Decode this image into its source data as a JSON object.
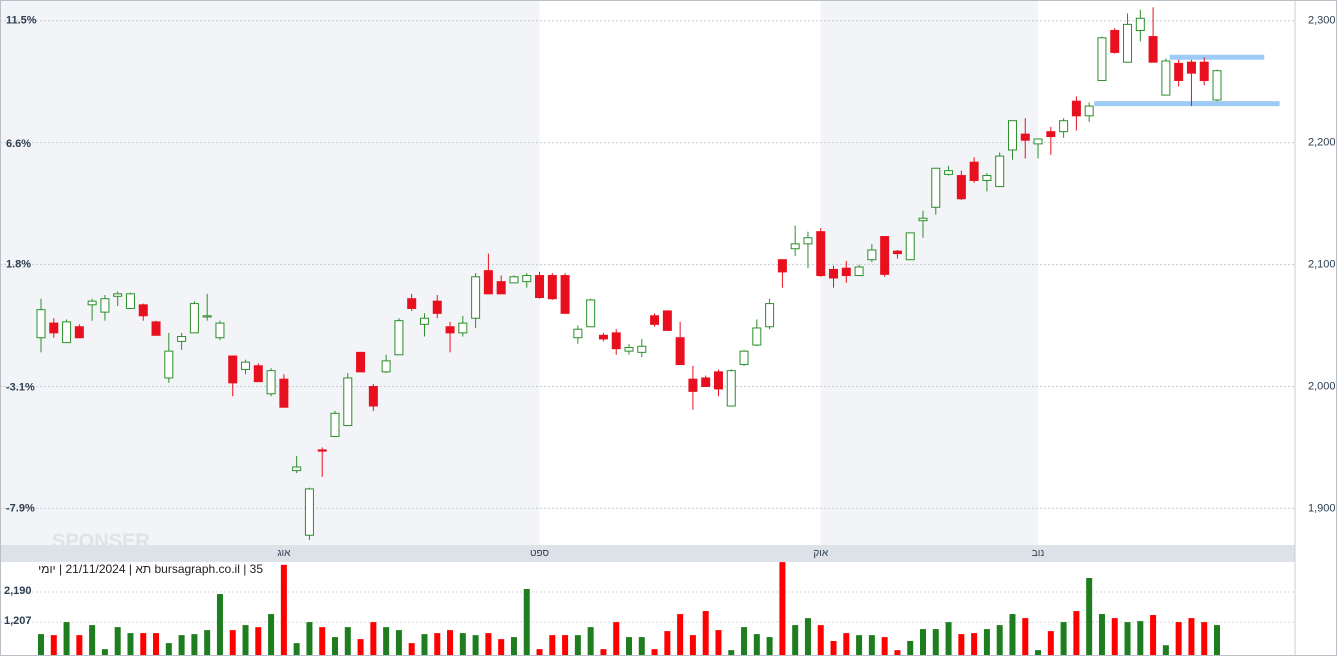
{
  "chart_data": {
    "type": "candlestick",
    "up_color": "#2a8f2a",
    "down_color": "#e8101e",
    "open": [
      2040,
      2052,
      2036,
      2049,
      2067,
      2061,
      2074,
      2064,
      2067,
      2053,
      2007,
      2037,
      2044,
      2057,
      2040,
      2025,
      2014,
      2017,
      1994,
      2006,
      1931,
      1878,
      1948,
      1959,
      1968,
      2028,
      2000,
      2012,
      2026,
      2072,
      2051,
      2070,
      2049,
      2044,
      2056,
      2095,
      2086,
      2085,
      2086,
      2091,
      2091,
      2091,
      2040,
      2049,
      2042,
      2044,
      2029,
      2028,
      2058,
      2062,
      2040,
      2006,
      2007,
      2012,
      1984,
      2018,
      2034,
      2049,
      2104,
      2113,
      2117,
      2127,
      2096,
      2097,
      2091,
      2104,
      2123,
      2111,
      2104,
      2136,
      2147,
      2174,
      2173,
      2184,
      2169,
      2164,
      2194,
      2207,
      2199,
      2209,
      2209,
      2234,
      2222,
      2251,
      2292,
      2266,
      2292,
      2287,
      2239,
      2265,
      2266,
      2266,
      2235
    ],
    "high": [
      2072,
      2056,
      2055,
      2051,
      2072,
      2075,
      2078,
      2077,
      2068,
      2054,
      2044,
      2044,
      2070,
      2076,
      2054,
      2025,
      2022,
      2019,
      2015,
      2010,
      1943,
      1917,
      1950,
      1980,
      2011,
      2028,
      2002,
      2026,
      2056,
      2076,
      2060,
      2075,
      2053,
      2058,
      2093,
      2109,
      2091,
      2091,
      2093,
      2094,
      2093,
      2093,
      2050,
      2072,
      2044,
      2047,
      2035,
      2039,
      2060,
      2062,
      2053,
      2017,
      2009,
      2014,
      2014,
      2030,
      2055,
      2072,
      2104,
      2132,
      2127,
      2130,
      2099,
      2103,
      2100,
      2117,
      2123,
      2112,
      2126,
      2144,
      2179,
      2181,
      2177,
      2188,
      2175,
      2192,
      2218,
      2220,
      2203,
      2213,
      2220,
      2238,
      2233,
      2287,
      2294,
      2306,
      2309,
      2311,
      2269,
      2268,
      2268,
      2270,
      2260
    ],
    "low": [
      2028,
      2040,
      2036,
      2040,
      2054,
      2054,
      2066,
      2064,
      2054,
      2042,
      2003,
      2030,
      2044,
      2054,
      2038,
      1992,
      2010,
      2004,
      1992,
      1983,
      1929,
      1874,
      1926,
      1959,
      1968,
      2012,
      1980,
      2011,
      2026,
      2062,
      2041,
      2056,
      2028,
      2041,
      2048,
      2076,
      2076,
      2085,
      2081,
      2072,
      2071,
      2060,
      2035,
      2049,
      2037,
      2026,
      2026,
      2024,
      2049,
      2046,
      2018,
      1981,
      2000,
      1992,
      1984,
      2017,
      2033,
      2047,
      2081,
      2107,
      2097,
      2090,
      2081,
      2085,
      2091,
      2102,
      2090,
      2105,
      2104,
      2122,
      2141,
      2173,
      2153,
      2167,
      2160,
      2164,
      2186,
      2187,
      2187,
      2190,
      2204,
      2210,
      2217,
      2251,
      2273,
      2266,
      2283,
      2266,
      2239,
      2246,
      2230,
      2247,
      2234
    ],
    "close": [
      2063,
      2044,
      2053,
      2040,
      2070,
      2072,
      2076,
      2076,
      2058,
      2042,
      2029,
      2041,
      2068,
      2058,
      2052,
      2003,
      2020,
      2004,
      2013,
      1983,
      1934,
      1916,
      1947,
      1978,
      2007,
      2012,
      1984,
      2021,
      2054,
      2064,
      2056,
      2060,
      2044,
      2052,
      2090,
      2076,
      2076,
      2090,
      2091,
      2073,
      2072,
      2060,
      2047,
      2071,
      2039,
      2031,
      2032,
      2033,
      2051,
      2046,
      2018,
      1996,
      2000,
      1998,
      2013,
      2029,
      2048,
      2068,
      2094,
      2117,
      2122,
      2091,
      2089,
      2091,
      2098,
      2112,
      2092,
      2109,
      2126,
      2138,
      2179,
      2177,
      2154,
      2169,
      2173,
      2189,
      2218,
      2202,
      2203,
      2205,
      2218,
      2222,
      2230,
      2286,
      2274,
      2297,
      2302,
      2266,
      2267,
      2251,
      2257,
      2251,
      2259
    ],
    "ylim": [
      1870,
      2317
    ],
    "yticks": [
      {
        "value": 1900,
        "label": "1,900"
      },
      {
        "value": 2000,
        "label": "2,000"
      },
      {
        "value": 2100,
        "label": "2,100"
      },
      {
        "value": 2200,
        "label": "2,200"
      },
      {
        "value": 2300,
        "label": "2,300"
      }
    ],
    "y2lim": [
      -9.35,
      12.32
    ],
    "y2ticks": [
      {
        "value": -7.9,
        "label": "-7.9%"
      },
      {
        "value": -3.1,
        "label": "-3.1%"
      },
      {
        "value": 1.8,
        "label": "1.8%"
      },
      {
        "value": 6.6,
        "label": "6.6%"
      },
      {
        "value": 11.5,
        "label": "11.5%"
      }
    ],
    "xticks": [
      {
        "value": 19,
        "label": "אוג"
      },
      {
        "value": 39,
        "label": "ספט"
      },
      {
        "value": 61,
        "label": "אוק"
      },
      {
        "value": 78,
        "label": "נוב"
      }
    ],
    "grid": true,
    "hlines": [
      {
        "value": 2270,
        "x": [
          88.3,
          95.7
        ],
        "color": "#9ecbf5"
      },
      {
        "value": 2232,
        "x": [
          82.4,
          96.9
        ],
        "color": "#9ecbf5"
      }
    ],
    "volume": {
      "values": [
        814,
        781,
        1207,
        781,
        1109,
        322,
        1043,
        847,
        847,
        847,
        519,
        781,
        814,
        945,
        2125,
        945,
        1109,
        1043,
        1470,
        3080,
        519,
        1207,
        1043,
        716,
        1043,
        650,
        1207,
        1043,
        945,
        519,
        814,
        847,
        945,
        847,
        781,
        847,
        650,
        716,
        2290,
        322,
        781,
        781,
        781,
        1043,
        322,
        1207,
        716,
        716,
        322,
        912,
        1470,
        781,
        1568,
        945,
        290,
        1043,
        814,
        716,
        3170,
        1109,
        1338,
        1109,
        590,
        847,
        781,
        781,
        716,
        290,
        590,
        978,
        978,
        1207,
        814,
        847,
        978,
        1109,
        1470,
        1338,
        290,
        912,
        1207,
        1568,
        2650,
        1470,
        1338,
        1207,
        1240,
        1438,
        450,
        1207,
        1338,
        1207,
        1109
      ],
      "ylim": [
        0,
        3173
      ],
      "yticks": [
        {
          "value": 1207,
          "label": "1,207"
        },
        {
          "value": 2190,
          "label": "2,190"
        }
      ]
    },
    "watermark": "SPONSER",
    "footer": "bursagraph.co.il | 35 תא | 21/11/2024 | יומי"
  }
}
